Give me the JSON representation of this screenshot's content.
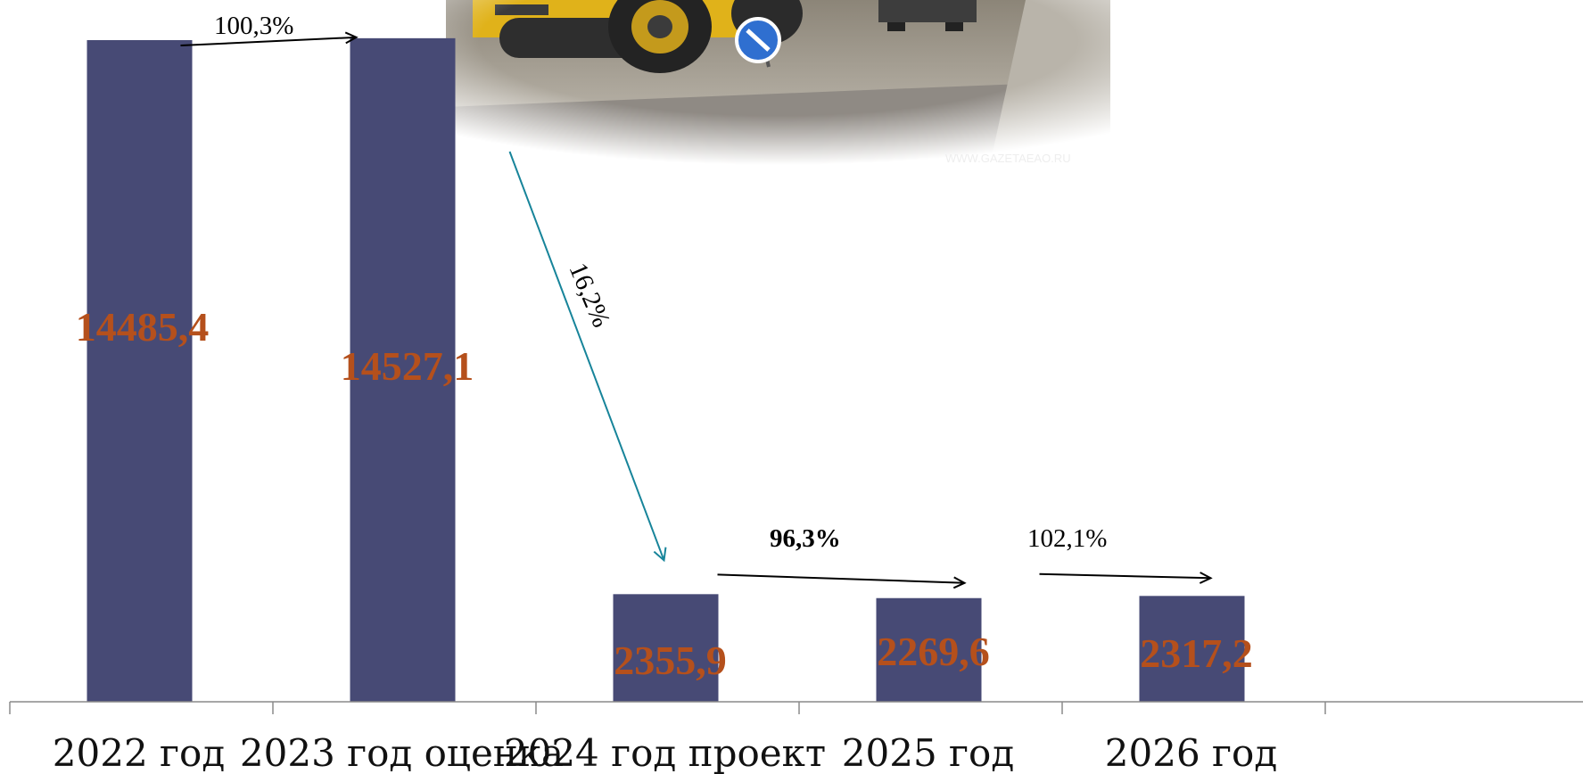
{
  "chart_data": {
    "type": "bar",
    "categories": [
      "2022 год",
      "2023 год оценка",
      "2024 год проект",
      "2025 год",
      "2026 год"
    ],
    "values": [
      14485.4,
      14527.1,
      2355.9,
      2269.6,
      2317.2
    ],
    "value_labels": [
      "14485,4",
      "14527,1",
      "2355,9",
      "2269,6",
      "2317,2"
    ],
    "bar_color": "#474a75",
    "label_color": "#b5501c",
    "ylim": [
      0,
      16000
    ],
    "grid": false,
    "legend": "none",
    "annotations": [
      {
        "from": 0,
        "to": 1,
        "text": "100,3%",
        "color": "#000000"
      },
      {
        "from": 1,
        "to": 2,
        "text": "16,2%",
        "color": "#17849a"
      },
      {
        "from": 2,
        "to": 3,
        "text": "96,3%",
        "color": "#000000"
      },
      {
        "from": 3,
        "to": 4,
        "text": "102,1%",
        "color": "#000000"
      }
    ]
  },
  "photo": {
    "watermark": "WWW.GAZETAEAO.RU",
    "road_sign_icon": "road-sign-icon",
    "subject": "road-roller-icon"
  }
}
